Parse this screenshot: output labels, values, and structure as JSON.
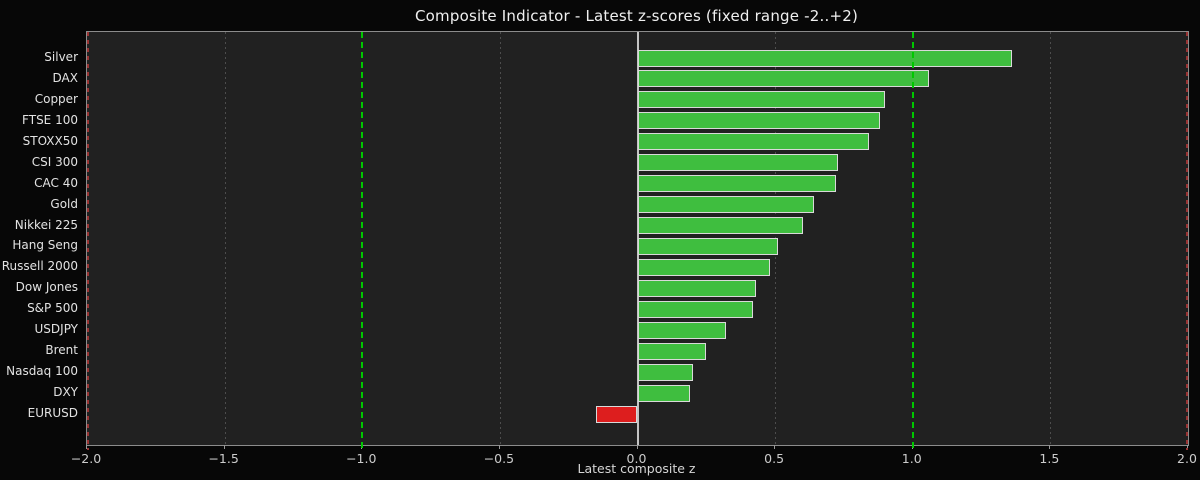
{
  "figure": {
    "background": "#070707",
    "plot_background": "#212121"
  },
  "chart_data": {
    "type": "bar",
    "orientation": "horizontal",
    "title": "Composite Indicator - Latest z-scores (fixed range -2..+2)",
    "xlabel": "Latest composite z",
    "xlim": [
      -2,
      2
    ],
    "xticks": [
      -2.0,
      -1.5,
      -1.0,
      -0.5,
      0.0,
      0.5,
      1.0,
      1.5,
      2.0
    ],
    "xtick_labels": [
      "−2.0",
      "−1.5",
      "−1.0",
      "−0.5",
      "0.0",
      "0.5",
      "1.0",
      "1.5",
      "2.0"
    ],
    "categories": [
      "Silver",
      "DAX",
      "Copper",
      "FTSE 100",
      "STOXX50",
      "CSI 300",
      "CAC 40",
      "Gold",
      "Nikkei 225",
      "Hang Seng",
      "Russell 2000",
      "Dow Jones",
      "S&P 500",
      "USDJPY",
      "Brent",
      "Nasdaq 100",
      "DXY",
      "EURUSD"
    ],
    "values": [
      1.36,
      1.06,
      0.9,
      0.88,
      0.84,
      0.73,
      0.72,
      0.64,
      0.6,
      0.51,
      0.48,
      0.43,
      0.42,
      0.32,
      0.25,
      0.2,
      0.19,
      -0.15
    ],
    "grid": "vertical-dashed",
    "legend": "none",
    "reference_lines": {
      "zero": 0.0,
      "green_dashed": [
        -1.0,
        1.0
      ],
      "red_dashed": [
        -2.0,
        2.0
      ]
    },
    "colors": {
      "positive_bar": "#3fbe3f",
      "negative_bar": "#dd1e1e",
      "bar_edge": "#d9d9d9",
      "green_line": "#00c800",
      "red_line": "#993333",
      "grid_line": "#4d4d4d",
      "zero_line": "#c4c4c4",
      "title_text": "#f0f0f0",
      "tick_text": "#cccccc",
      "spine": "#8c8c8c"
    }
  }
}
